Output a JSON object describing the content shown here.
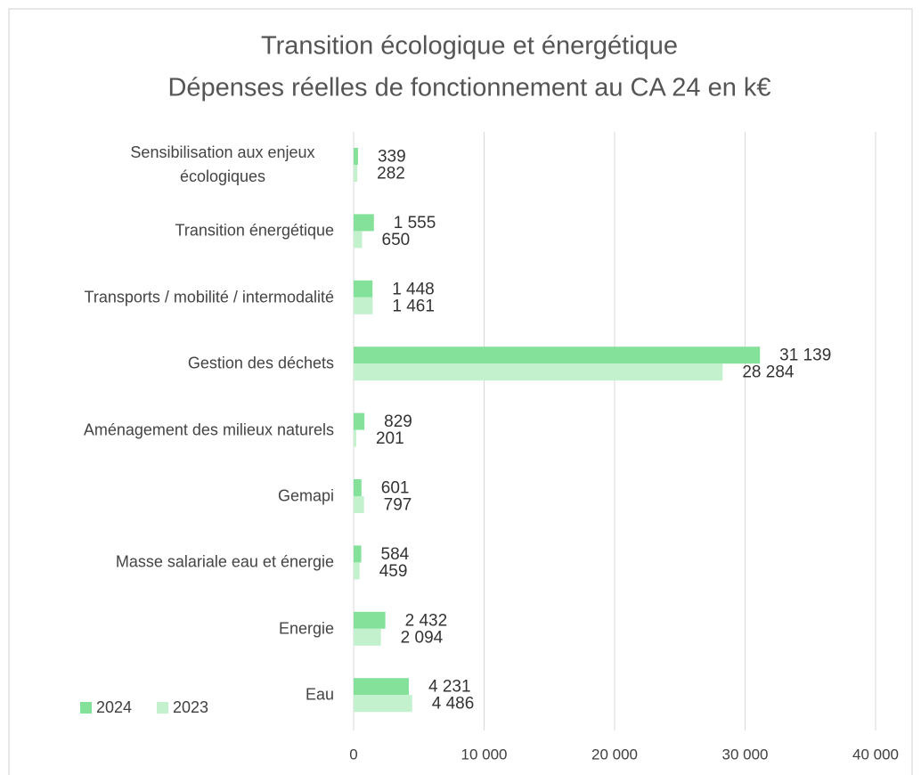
{
  "chart_data": {
    "type": "bar",
    "orientation": "horizontal",
    "title": "Transition écologique et énergétique",
    "subtitle": "Dépenses réelles de fonctionnement au CA 24 en k€",
    "categories": [
      "Sensibilisation aux enjeux écologiques",
      "Transition énergétique",
      "Transports / mobilité / intermodalité",
      "Gestion des déchets",
      "Aménagement des milieux naturels",
      "Gemapi",
      "Masse salariale eau et énergie",
      "Energie",
      "Eau"
    ],
    "series": [
      {
        "name": "2024",
        "color": "#84e19a",
        "values": [
          339,
          1555,
          1448,
          31139,
          829,
          601,
          584,
          2432,
          4231
        ],
        "value_labels": [
          "339",
          "1 555",
          "1 448",
          "31 139",
          "829",
          "601",
          "584",
          "2 432",
          "4 231"
        ]
      },
      {
        "name": "2023",
        "color": "#c4f1cd",
        "values": [
          282,
          650,
          1461,
          28284,
          201,
          797,
          459,
          2094,
          4486
        ],
        "value_labels": [
          "282",
          "650",
          "1 461",
          "28 284",
          "201",
          "797",
          "459",
          "2 094",
          "4 486"
        ]
      }
    ],
    "xlim": [
      0,
      40000
    ],
    "xticks": [
      0,
      {
        "value": 10000,
        "label": "10 000"
      },
      {
        "value": 20000,
        "label": "20 000"
      },
      {
        "value": 30000,
        "label": "30 000"
      },
      {
        "value": 40000,
        "label": "40 000"
      }
    ],
    "grid": true,
    "legend": "bottom-left"
  }
}
